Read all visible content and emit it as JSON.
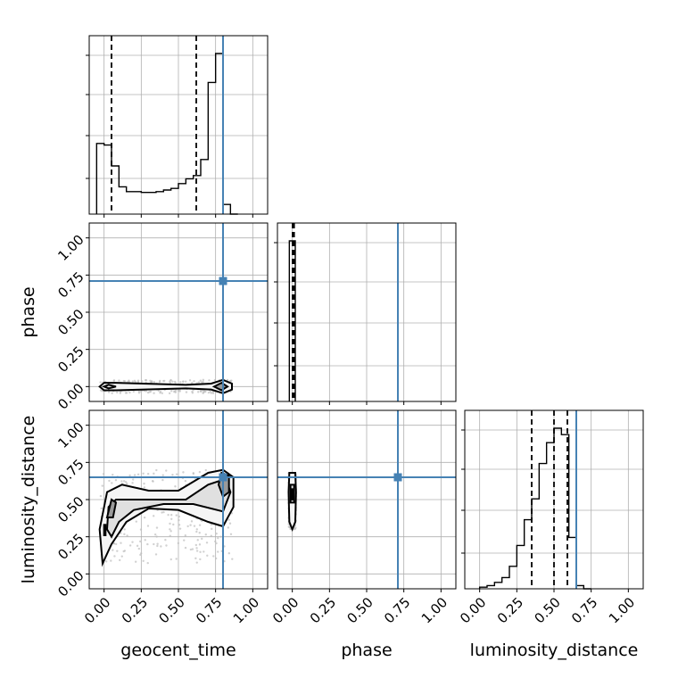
{
  "chart_data": {
    "type": "corner",
    "parameters": [
      "geocent_time",
      "phase",
      "luminosity_distance"
    ],
    "xlabels": [
      "geocent_time",
      "phase",
      "luminosity_distance"
    ],
    "ylabels": [
      "",
      "phase",
      "luminosity_distance"
    ],
    "tick_values": [
      0.0,
      0.25,
      0.5,
      0.75,
      1.0
    ],
    "tick_labels": [
      "0.00",
      "0.25",
      "0.50",
      "0.75",
      "1.00"
    ],
    "range": [
      -0.1,
      1.1
    ],
    "grid": true,
    "truths": [
      0.8,
      0.71,
      0.65
    ],
    "truth_color": "#4682b4",
    "line_color": "#000000",
    "quantiles": [
      [
        0.05,
        0.62,
        0.8
      ],
      [
        0.002,
        0.005,
        0.012
      ],
      [
        0.35,
        0.5,
        0.59
      ]
    ],
    "histograms": [
      {
        "parameter": "geocent_time",
        "bin_edges": [
          -0.05,
          0.0,
          0.05,
          0.1,
          0.15,
          0.2,
          0.25,
          0.3,
          0.35,
          0.4,
          0.45,
          0.5,
          0.55,
          0.6,
          0.65,
          0.7,
          0.75,
          0.8,
          0.85,
          0.9
        ],
        "counts": [
          0.44,
          0.43,
          0.3,
          0.17,
          0.14,
          0.14,
          0.135,
          0.135,
          0.14,
          0.15,
          0.16,
          0.19,
          0.22,
          0.24,
          0.34,
          0.82,
          1.0,
          0.06,
          0.0
        ]
      },
      {
        "parameter": "phase",
        "bin_edges": [
          -0.02,
          0.0,
          0.02
        ],
        "counts": [
          1.0,
          1.0
        ]
      },
      {
        "parameter": "luminosity_distance",
        "bin_edges": [
          0.0,
          0.05,
          0.1,
          0.15,
          0.2,
          0.25,
          0.3,
          0.35,
          0.4,
          0.45,
          0.5,
          0.55,
          0.6,
          0.65,
          0.7,
          0.75
        ],
        "counts": [
          0.01,
          0.02,
          0.04,
          0.07,
          0.14,
          0.27,
          0.43,
          0.56,
          0.78,
          0.91,
          1.0,
          0.96,
          0.32,
          0.02,
          0.0
        ]
      }
    ],
    "contours": [
      {
        "x": "geocent_time",
        "y": "phase",
        "levels": [
          [
            [
              -0.03,
              0.0
            ],
            [
              0.0,
              0.025
            ],
            [
              0.08,
              0.025
            ],
            [
              0.55,
              0.012
            ],
            [
              0.72,
              0.02
            ],
            [
              0.8,
              0.045
            ],
            [
              0.86,
              0.02
            ],
            [
              0.86,
              -0.02
            ],
            [
              0.8,
              -0.045
            ],
            [
              0.72,
              -0.02
            ],
            [
              0.55,
              -0.012
            ],
            [
              0.08,
              -0.025
            ],
            [
              0.0,
              -0.025
            ],
            [
              -0.03,
              0.0
            ]
          ],
          [
            [
              0.0,
              0.0
            ],
            [
              0.03,
              0.012
            ],
            [
              0.08,
              0.0
            ],
            [
              0.03,
              -0.012
            ],
            [
              0.0,
              0.0
            ]
          ],
          [
            [
              0.74,
              0.0
            ],
            [
              0.79,
              0.025
            ],
            [
              0.83,
              0.0
            ],
            [
              0.79,
              -0.025
            ],
            [
              0.74,
              0.0
            ]
          ]
        ]
      },
      {
        "x": "geocent_time",
        "y": "luminosity_distance",
        "levels": [
          [
            [
              -0.01,
              0.07
            ],
            [
              -0.03,
              0.3
            ],
            [
              0.02,
              0.55
            ],
            [
              0.12,
              0.6
            ],
            [
              0.3,
              0.56
            ],
            [
              0.5,
              0.56
            ],
            [
              0.7,
              0.68
            ],
            [
              0.8,
              0.7
            ],
            [
              0.87,
              0.65
            ],
            [
              0.87,
              0.45
            ],
            [
              0.8,
              0.32
            ],
            [
              0.7,
              0.35
            ],
            [
              0.5,
              0.43
            ],
            [
              0.3,
              0.44
            ],
            [
              0.15,
              0.35
            ],
            [
              0.05,
              0.2
            ],
            [
              -0.01,
              0.07
            ]
          ],
          [
            [
              0.02,
              0.3
            ],
            [
              0.03,
              0.45
            ],
            [
              0.08,
              0.5
            ],
            [
              0.3,
              0.5
            ],
            [
              0.55,
              0.5
            ],
            [
              0.7,
              0.6
            ],
            [
              0.82,
              0.64
            ],
            [
              0.85,
              0.55
            ],
            [
              0.8,
              0.42
            ],
            [
              0.6,
              0.47
            ],
            [
              0.4,
              0.47
            ],
            [
              0.2,
              0.43
            ],
            [
              0.1,
              0.35
            ],
            [
              0.05,
              0.25
            ],
            [
              0.02,
              0.3
            ]
          ],
          [
            [
              0.02,
              0.38
            ],
            [
              0.05,
              0.5
            ],
            [
              0.08,
              0.48
            ],
            [
              0.06,
              0.38
            ],
            [
              0.02,
              0.38
            ]
          ],
          [
            [
              0.0,
              0.26
            ],
            [
              0.0,
              0.33
            ],
            [
              0.01,
              0.33
            ],
            [
              0.01,
              0.26
            ],
            [
              0.0,
              0.26
            ]
          ],
          [
            [
              0.77,
              0.6
            ],
            [
              0.79,
              0.68
            ],
            [
              0.84,
              0.66
            ],
            [
              0.84,
              0.55
            ],
            [
              0.8,
              0.52
            ],
            [
              0.77,
              0.6
            ]
          ]
        ]
      },
      {
        "x": "phase",
        "y": "luminosity_distance",
        "levels": [
          [
            [
              -0.02,
              0.35
            ],
            [
              -0.025,
              0.55
            ],
            [
              -0.02,
              0.68
            ],
            [
              0.02,
              0.68
            ],
            [
              0.025,
              0.55
            ],
            [
              0.02,
              0.35
            ],
            [
              0.0,
              0.3
            ],
            [
              -0.02,
              0.35
            ]
          ],
          [
            [
              -0.012,
              0.48
            ],
            [
              -0.012,
              0.6
            ],
            [
              0.012,
              0.6
            ],
            [
              0.012,
              0.48
            ],
            [
              -0.012,
              0.48
            ]
          ],
          [
            [
              -0.006,
              0.5
            ],
            [
              -0.006,
              0.57
            ],
            [
              0.006,
              0.57
            ],
            [
              0.006,
              0.5
            ],
            [
              -0.006,
              0.5
            ]
          ]
        ]
      }
    ]
  }
}
